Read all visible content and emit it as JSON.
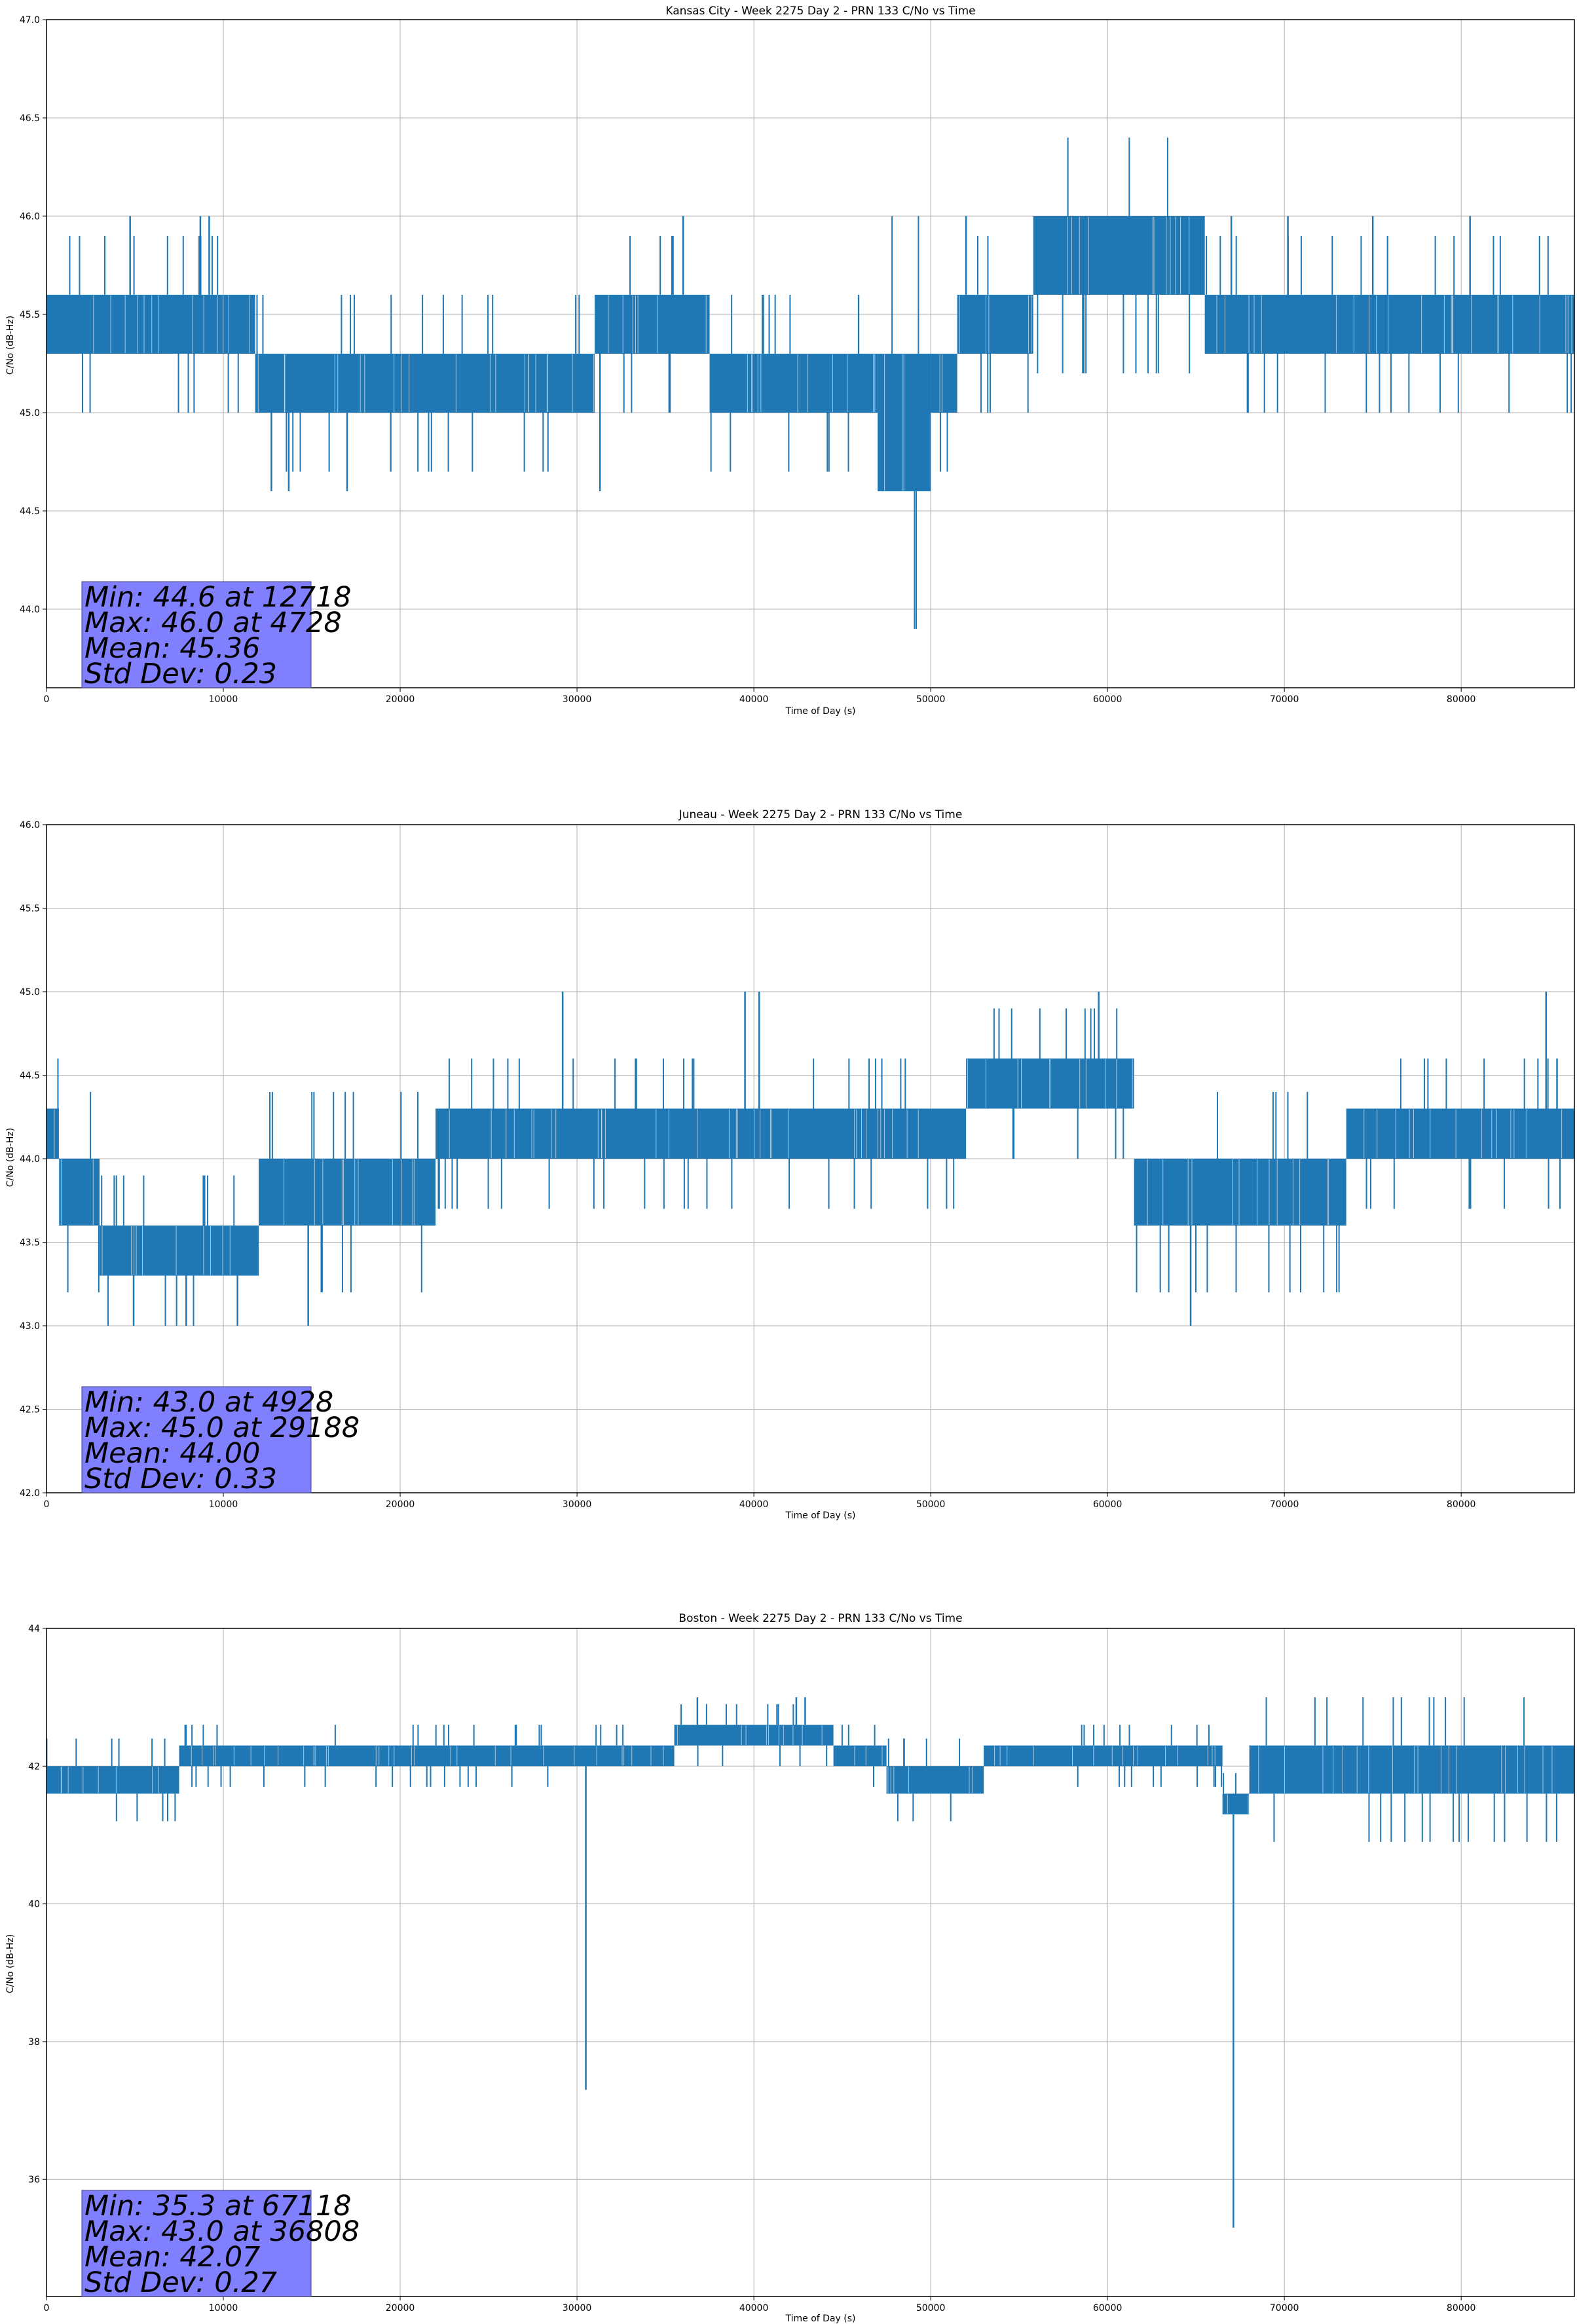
{
  "colors": {
    "series": "#1f77b4",
    "grid": "#b0b0b0",
    "stat_box": "#8080ff"
  },
  "chart_data": [
    {
      "type": "line",
      "title": "Kansas City - Week 2275 Day 2 - PRN 133 C/No vs Time",
      "xlabel": "Time of Day (s)",
      "ylabel": "C/No (dB-Hz)",
      "xlim": [
        0,
        86400
      ],
      "ylim": [
        43.6,
        47.0
      ],
      "xticks": [
        0,
        10000,
        20000,
        30000,
        40000,
        50000,
        60000,
        70000,
        80000
      ],
      "xtick_labels": [
        "0",
        "10000",
        "20000",
        "30000",
        "40000",
        "50000",
        "60000",
        "70000",
        "80000"
      ],
      "yticks": [
        44.0,
        44.5,
        45.0,
        45.5,
        46.0,
        46.5,
        47.0
      ],
      "ytick_labels": [
        "44.0",
        "44.5",
        "45.0",
        "45.5",
        "46.0",
        "46.5",
        "47.0"
      ],
      "grid": true,
      "series_bands": [
        {
          "x": [
            0,
            11800
          ],
          "low": 45.3,
          "high": 45.6
        },
        {
          "x": [
            11800,
            31000
          ],
          "low": 45.0,
          "high": 45.3
        },
        {
          "x": [
            31000,
            37500
          ],
          "low": 45.3,
          "high": 45.6
        },
        {
          "x": [
            37500,
            47000
          ],
          "low": 45.0,
          "high": 45.3
        },
        {
          "x": [
            47000,
            50000
          ],
          "low": 44.6,
          "high": 45.3
        },
        {
          "x": [
            50000,
            51500
          ],
          "low": 45.0,
          "high": 45.3
        },
        {
          "x": [
            51500,
            55800
          ],
          "low": 45.3,
          "high": 45.6
        },
        {
          "x": [
            55800,
            65500
          ],
          "low": 45.6,
          "high": 46.0
        },
        {
          "x": [
            65500,
            86400
          ],
          "low": 45.3,
          "high": 45.6
        }
      ],
      "spikes": [
        {
          "x": 4728,
          "y": 46.0
        },
        {
          "x": 8700,
          "y": 46.0
        },
        {
          "x": 9200,
          "y": 46.0
        },
        {
          "x": 12718,
          "y": 44.6
        },
        {
          "x": 13700,
          "y": 44.6
        },
        {
          "x": 17000,
          "y": 44.6
        },
        {
          "x": 31300,
          "y": 44.6
        },
        {
          "x": 36000,
          "y": 46.0
        },
        {
          "x": 52000,
          "y": 46.0
        },
        {
          "x": 67000,
          "y": 46.0
        },
        {
          "x": 70200,
          "y": 46.0
        },
        {
          "x": 75000,
          "y": 46.0
        },
        {
          "x": 80500,
          "y": 46.0
        }
      ],
      "stats": [
        "Min: 44.6 at 12718",
        "Max: 46.0 at 4728",
        "Mean: 45.36",
        "Std Dev: 0.23"
      ]
    },
    {
      "type": "line",
      "title": "Juneau - Week 2275 Day 2 - PRN 133 C/No vs Time",
      "xlabel": "Time of Day (s)",
      "ylabel": "C/No (dB-Hz)",
      "xlim": [
        0,
        86400
      ],
      "ylim": [
        42.0,
        46.0
      ],
      "xticks": [
        0,
        10000,
        20000,
        30000,
        40000,
        50000,
        60000,
        70000,
        80000
      ],
      "xtick_labels": [
        "0",
        "10000",
        "20000",
        "30000",
        "40000",
        "50000",
        "60000",
        "70000",
        "80000"
      ],
      "yticks": [
        42.0,
        42.5,
        43.0,
        43.5,
        44.0,
        44.5,
        45.0,
        45.5,
        46.0
      ],
      "ytick_labels": [
        "42.0",
        "42.5",
        "43.0",
        "43.5",
        "44.0",
        "44.5",
        "45.0",
        "45.5",
        "46.0"
      ],
      "grid": true,
      "series_bands": [
        {
          "x": [
            0,
            700
          ],
          "low": 44.0,
          "high": 44.3
        },
        {
          "x": [
            700,
            3000
          ],
          "low": 43.6,
          "high": 44.0
        },
        {
          "x": [
            3000,
            12000
          ],
          "low": 43.3,
          "high": 43.6
        },
        {
          "x": [
            12000,
            22000
          ],
          "low": 43.6,
          "high": 44.0
        },
        {
          "x": [
            22000,
            52000
          ],
          "low": 44.0,
          "high": 44.3
        },
        {
          "x": [
            52000,
            61500
          ],
          "low": 44.3,
          "high": 44.6
        },
        {
          "x": [
            61500,
            73500
          ],
          "low": 43.6,
          "high": 44.0
        },
        {
          "x": [
            73500,
            86400
          ],
          "low": 44.0,
          "high": 44.3
        }
      ],
      "spikes": [
        {
          "x": 4928,
          "y": 43.0
        },
        {
          "x": 7900,
          "y": 43.0
        },
        {
          "x": 10800,
          "y": 43.0
        },
        {
          "x": 14800,
          "y": 43.0
        },
        {
          "x": 29188,
          "y": 45.0
        },
        {
          "x": 39500,
          "y": 45.0
        },
        {
          "x": 40300,
          "y": 45.0
        },
        {
          "x": 59500,
          "y": 45.0
        },
        {
          "x": 64700,
          "y": 43.0
        },
        {
          "x": 84800,
          "y": 45.0
        }
      ],
      "stats": [
        "Min: 43.0 at 4928",
        "Max: 45.0 at 29188",
        "Mean: 44.00",
        "Std Dev: 0.33"
      ]
    },
    {
      "type": "line",
      "title": "Boston - Week 2275 Day 2 - PRN 133 C/No vs Time",
      "xlabel": "Time of Day (s)",
      "ylabel": "C/No (dB-Hz)",
      "xlim": [
        0,
        86400
      ],
      "ylim": [
        34.3,
        44.0
      ],
      "xticks": [
        0,
        10000,
        20000,
        30000,
        40000,
        50000,
        60000,
        70000,
        80000
      ],
      "xtick_labels": [
        "0",
        "10000",
        "20000",
        "30000",
        "40000",
        "50000",
        "60000",
        "70000",
        "80000"
      ],
      "yticks": [
        36,
        38,
        40,
        42,
        44
      ],
      "ytick_labels": [
        "36",
        "38",
        "40",
        "42",
        "44"
      ],
      "grid": true,
      "series_bands": [
        {
          "x": [
            0,
            7500
          ],
          "low": 41.6,
          "high": 42.0
        },
        {
          "x": [
            7500,
            35500
          ],
          "low": 42.0,
          "high": 42.3
        },
        {
          "x": [
            35500,
            44500
          ],
          "low": 42.3,
          "high": 42.6
        },
        {
          "x": [
            44500,
            47500
          ],
          "low": 42.0,
          "high": 42.3
        },
        {
          "x": [
            47500,
            53000
          ],
          "low": 41.6,
          "high": 42.0
        },
        {
          "x": [
            53000,
            66500
          ],
          "low": 42.0,
          "high": 42.3
        },
        {
          "x": [
            66500,
            68000
          ],
          "low": 41.3,
          "high": 41.6
        },
        {
          "x": [
            68000,
            86400
          ],
          "low": 41.6,
          "high": 42.3
        }
      ],
      "spikes": [
        {
          "x": 30500,
          "y": 37.3
        },
        {
          "x": 36808,
          "y": 43.0
        },
        {
          "x": 42400,
          "y": 43.0
        },
        {
          "x": 42900,
          "y": 43.0
        },
        {
          "x": 67118,
          "y": 35.3
        }
      ],
      "stats": [
        "Min: 35.3 at 67118",
        "Max: 43.0 at 36808",
        "Mean: 42.07",
        "Std Dev: 0.27"
      ]
    }
  ]
}
